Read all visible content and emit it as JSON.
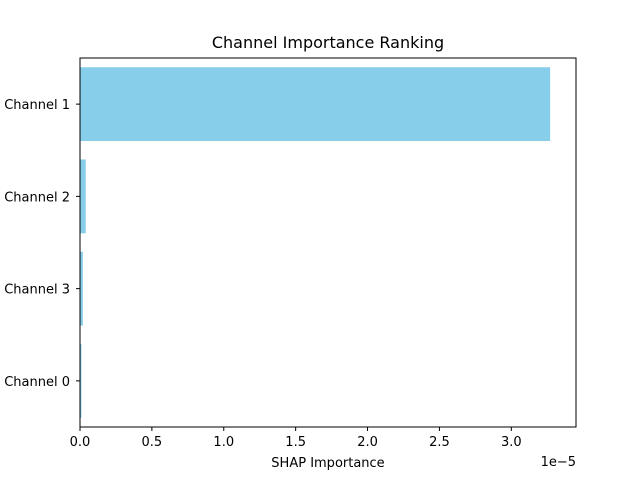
{
  "chart_data": {
    "type": "bar",
    "orientation": "horizontal",
    "title": "Channel Importance Ranking",
    "xlabel": "SHAP Importance",
    "ylabel": "",
    "x_offset_label": "1e−5",
    "categories": [
      "Channel 1",
      "Channel 2",
      "Channel 3",
      "Channel 0"
    ],
    "values": [
      3.27e-05,
      4e-07,
      2e-07,
      1e-07
    ],
    "xlim": [
      0,
      3.45e-05
    ],
    "x_ticks": [
      0,
      5e-06,
      1e-05,
      1.5e-05,
      2e-05,
      2.5e-05,
      3e-05
    ],
    "x_tick_labels": [
      "0.0",
      "0.5",
      "1.0",
      "1.5",
      "2.0",
      "2.5",
      "3.0"
    ],
    "bar_color": "#87ceeb",
    "grid": false,
    "legend": "none"
  }
}
